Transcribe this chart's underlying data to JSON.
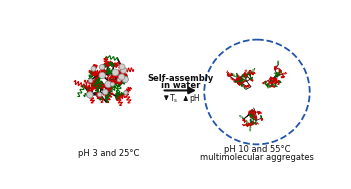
{
  "bg_color": "#ffffff",
  "left_label": "pH 3 and 25°C",
  "right_label_line1": "pH 10 and 55°C",
  "right_label_line2": "multimolecular aggregates",
  "arrow_label_line1": "Self-assembly",
  "arrow_label_line2": "in water",
  "polymer_black": "#111111",
  "polymer_red": "#cc0000",
  "polymer_green": "#006600",
  "circle_color": "#d0d0d0",
  "circle_edge": "#888888",
  "dashed_circle_color": "#2255aa",
  "fig_width": 3.51,
  "fig_height": 1.89
}
